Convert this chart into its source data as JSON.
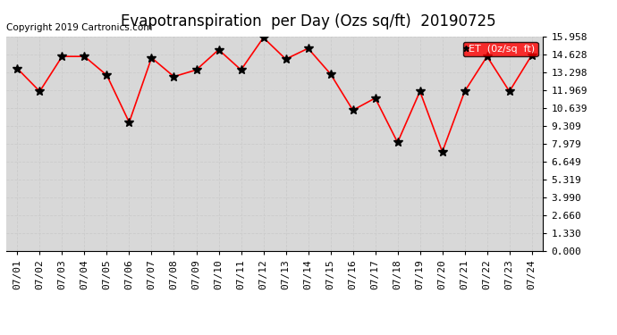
{
  "title": "Evapotranspiration  per Day (Ozs sq/ft)  20190725",
  "copyright": "Copyright 2019 Cartronics.com",
  "legend_label": "ET  (0z/sq  ft)",
  "x_labels": [
    "07/01",
    "07/02",
    "07/03",
    "07/04",
    "07/05",
    "07/06",
    "07/07",
    "07/08",
    "07/09",
    "07/10",
    "07/11",
    "07/12",
    "07/13",
    "07/14",
    "07/15",
    "07/16",
    "07/17",
    "07/18",
    "07/19",
    "07/20",
    "07/21",
    "07/22",
    "07/23",
    "07/24"
  ],
  "y_values": [
    13.6,
    11.9,
    14.5,
    14.5,
    13.1,
    9.6,
    14.4,
    13.0,
    13.5,
    15.0,
    13.5,
    15.9,
    14.3,
    15.1,
    13.2,
    10.5,
    11.4,
    8.1,
    11.9,
    7.4,
    11.9,
    14.5,
    11.9,
    14.6
  ],
  "y_ticks": [
    0.0,
    1.33,
    2.66,
    3.99,
    5.319,
    6.649,
    7.979,
    9.309,
    10.639,
    11.969,
    13.298,
    14.628,
    15.958
  ],
  "y_min": 0.0,
  "y_max": 15.958,
  "line_color": "red",
  "marker_color": "black",
  "grid_color": "#cccccc",
  "plot_bg_color": "#d8d8d8",
  "fig_bg_color": "white",
  "title_fontsize": 12,
  "copyright_fontsize": 7.5,
  "tick_fontsize": 8,
  "legend_bg": "red",
  "legend_text_color": "white",
  "legend_fontsize": 8
}
